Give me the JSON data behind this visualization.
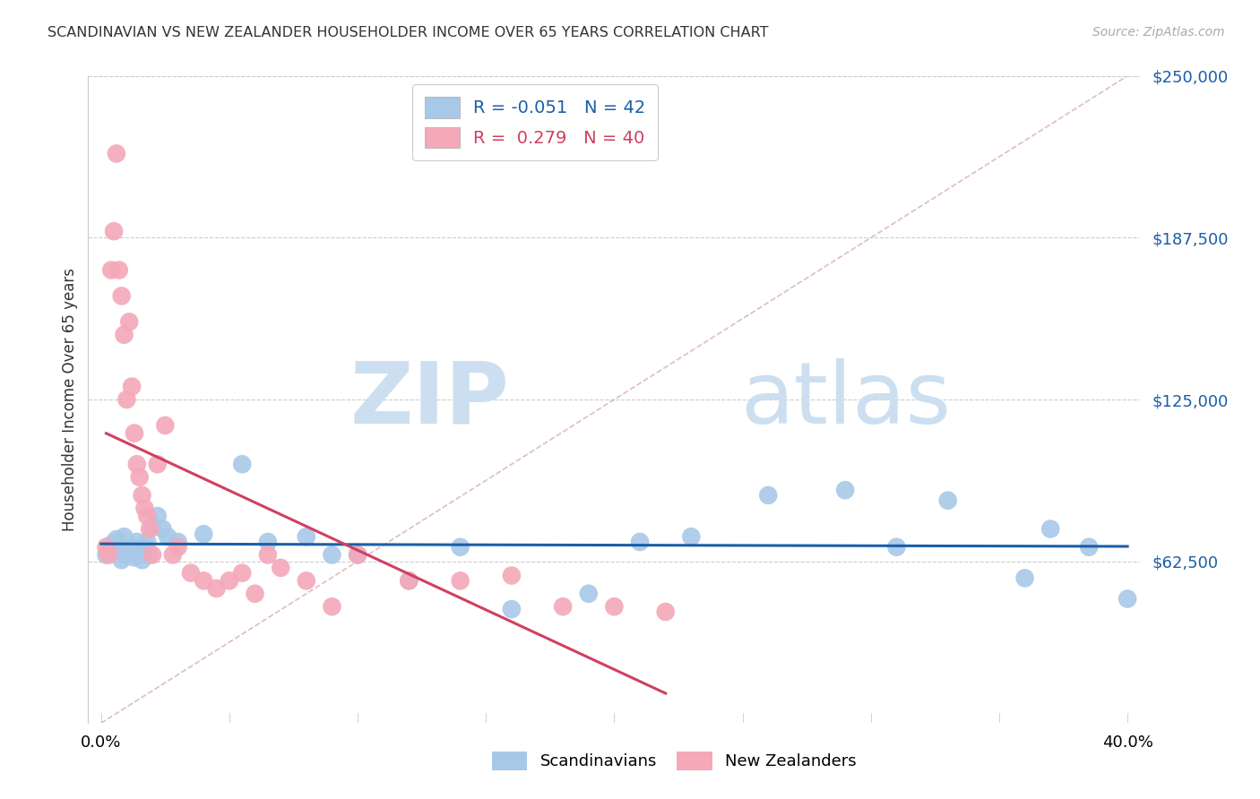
{
  "title": "SCANDINAVIAN VS NEW ZEALANDER HOUSEHOLDER INCOME OVER 65 YEARS CORRELATION CHART",
  "source": "Source: ZipAtlas.com",
  "ylabel": "Householder Income Over 65 years",
  "ylim": [
    0,
    250000
  ],
  "xlim": [
    -0.005,
    0.405
  ],
  "ytick_vals": [
    62500,
    125000,
    187500,
    250000
  ],
  "ytick_labels": [
    "$62,500",
    "$125,000",
    "$187,500",
    "$250,000"
  ],
  "xtick_vals": [
    0.0,
    0.05,
    0.1,
    0.15,
    0.2,
    0.25,
    0.3,
    0.35,
    0.4
  ],
  "xtick_label_vals": [
    0.0,
    0.4
  ],
  "xtick_label_strs": [
    "0.0%",
    "40.0%"
  ],
  "legend_blue_r": "-0.051",
  "legend_blue_n": "42",
  "legend_pink_r": "0.279",
  "legend_pink_n": "40",
  "blue_scatter_color": "#a8c8e8",
  "pink_scatter_color": "#f4a8b8",
  "blue_line_color": "#1a5fa8",
  "pink_line_color": "#d04060",
  "diag_line_color": "#d8b0c0",
  "grid_color": "#cccccc",
  "text_color": "#333333",
  "scandinavian_x": [
    0.002,
    0.004,
    0.005,
    0.006,
    0.007,
    0.008,
    0.009,
    0.01,
    0.011,
    0.012,
    0.013,
    0.014,
    0.015,
    0.016,
    0.017,
    0.018,
    0.019,
    0.02,
    0.022,
    0.024,
    0.026,
    0.03,
    0.04,
    0.055,
    0.065,
    0.08,
    0.09,
    0.1,
    0.12,
    0.14,
    0.16,
    0.19,
    0.21,
    0.23,
    0.26,
    0.29,
    0.31,
    0.33,
    0.36,
    0.37,
    0.385,
    0.4
  ],
  "scandinavian_y": [
    65000,
    69000,
    68000,
    71000,
    67000,
    63000,
    72000,
    65000,
    66000,
    68000,
    64000,
    70000,
    67000,
    63000,
    68000,
    70000,
    65000,
    76000,
    80000,
    75000,
    72000,
    70000,
    73000,
    100000,
    70000,
    72000,
    65000,
    65000,
    55000,
    68000,
    44000,
    50000,
    70000,
    72000,
    88000,
    90000,
    68000,
    86000,
    56000,
    75000,
    68000,
    48000
  ],
  "nz_x": [
    0.002,
    0.003,
    0.004,
    0.005,
    0.006,
    0.007,
    0.008,
    0.009,
    0.01,
    0.011,
    0.012,
    0.013,
    0.014,
    0.015,
    0.016,
    0.017,
    0.018,
    0.019,
    0.02,
    0.022,
    0.025,
    0.028,
    0.03,
    0.035,
    0.04,
    0.045,
    0.05,
    0.055,
    0.06,
    0.065,
    0.07,
    0.08,
    0.09,
    0.1,
    0.12,
    0.14,
    0.16,
    0.18,
    0.2,
    0.22
  ],
  "nz_y": [
    68000,
    65000,
    175000,
    190000,
    220000,
    175000,
    165000,
    150000,
    125000,
    155000,
    130000,
    112000,
    100000,
    95000,
    88000,
    83000,
    80000,
    75000,
    65000,
    100000,
    115000,
    65000,
    68000,
    58000,
    55000,
    52000,
    55000,
    58000,
    50000,
    65000,
    60000,
    55000,
    45000,
    65000,
    55000,
    55000,
    57000,
    45000,
    45000,
    43000
  ]
}
